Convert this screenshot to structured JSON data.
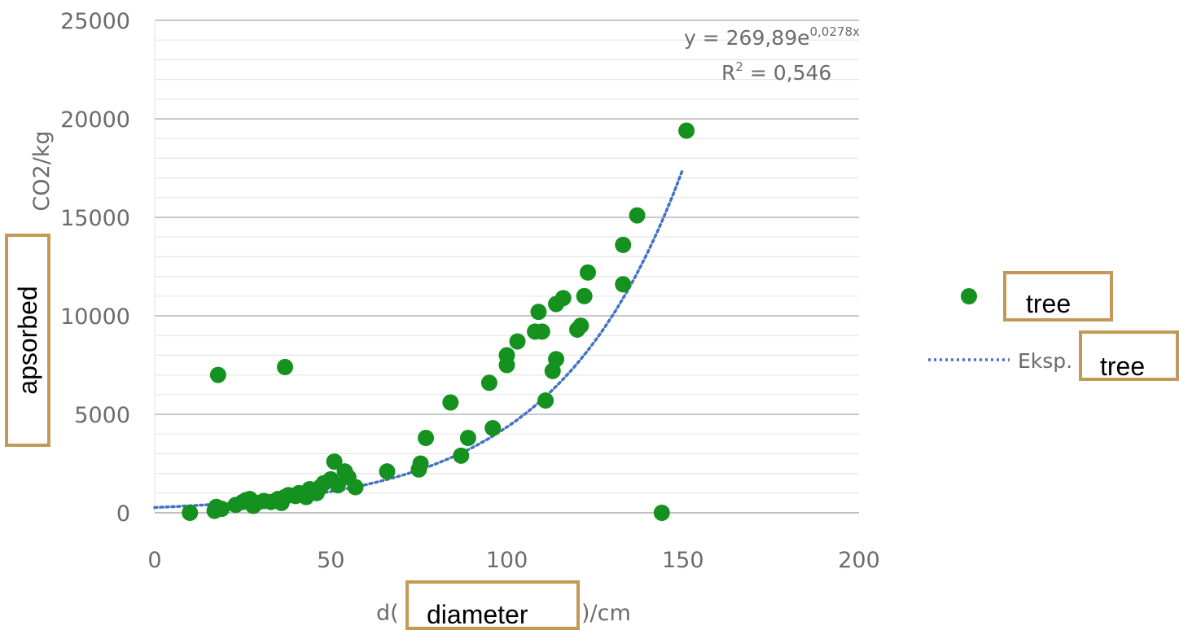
{
  "chart_data": {
    "type": "scatter",
    "xlabel_prefix": "d(",
    "xlabel_suffix": ")/cm",
    "ylabel": "CO2/kg",
    "xlim": [
      0,
      200
    ],
    "ylim": [
      0,
      25000
    ],
    "x_ticks": [
      "0",
      "50",
      "100",
      "150",
      "200"
    ],
    "y_ticks": [
      "0",
      "5000",
      "10000",
      "15000",
      "20000",
      "25000"
    ],
    "grid": "horizontal",
    "legend_position": "right",
    "series": [
      {
        "color": "#14911f",
        "points": [
          [
            10,
            0
          ],
          [
            17,
            100
          ],
          [
            17.5,
            300
          ],
          [
            18,
            7000
          ],
          [
            19,
            200
          ],
          [
            23,
            400
          ],
          [
            25,
            550
          ],
          [
            26,
            650
          ],
          [
            27,
            700
          ],
          [
            28,
            350
          ],
          [
            29,
            500
          ],
          [
            31,
            600
          ],
          [
            33,
            550
          ],
          [
            35,
            700
          ],
          [
            36,
            500
          ],
          [
            37,
            7400
          ],
          [
            37,
            800
          ],
          [
            38,
            900
          ],
          [
            40,
            850
          ],
          [
            41,
            1000
          ],
          [
            43,
            800
          ],
          [
            44,
            1200
          ],
          [
            46,
            1000
          ],
          [
            47,
            1300
          ],
          [
            48,
            1500
          ],
          [
            50,
            1700
          ],
          [
            51,
            2600
          ],
          [
            52,
            1400
          ],
          [
            54,
            2100
          ],
          [
            55,
            1800
          ],
          [
            57,
            1300
          ],
          [
            66,
            2100
          ],
          [
            75,
            2200
          ],
          [
            75.5,
            2500
          ],
          [
            77,
            3800
          ],
          [
            84,
            5600
          ],
          [
            87,
            2900
          ],
          [
            89,
            3800
          ],
          [
            95,
            6600
          ],
          [
            96,
            4300
          ],
          [
            100,
            8000
          ],
          [
            100,
            7500
          ],
          [
            103,
            8700
          ],
          [
            108,
            9200
          ],
          [
            109,
            10200
          ],
          [
            110,
            9200
          ],
          [
            111,
            5700
          ],
          [
            113,
            7200
          ],
          [
            114,
            7800
          ],
          [
            114,
            10600
          ],
          [
            116,
            10900
          ],
          [
            120,
            9300
          ],
          [
            121,
            9500
          ],
          [
            122,
            11000
          ],
          [
            123,
            12200
          ],
          [
            133,
            11600
          ],
          [
            133,
            13600
          ],
          [
            137,
            15100
          ],
          [
            144,
            0
          ],
          [
            151,
            19400
          ]
        ]
      },
      {
        "type": "trendline",
        "color": "#4472c4",
        "a": 269.89,
        "b": 0.0278,
        "x_range": [
          0,
          150
        ]
      }
    ],
    "annotations": {
      "equation_prefix": "y = 269,89e",
      "equation_exponent": "0,0278x",
      "r2_prefix": "R",
      "r2_exponent": "2",
      "r2_suffix": " = 0,546"
    },
    "legend": [
      {
        "label": ""
      },
      {
        "label": "Eksp."
      }
    ]
  },
  "overlay_labels": {
    "tree_label_1": "tree",
    "tree_label_2": "tree",
    "diameter_label": "diameter",
    "absorbed_label": "apsorbed"
  }
}
